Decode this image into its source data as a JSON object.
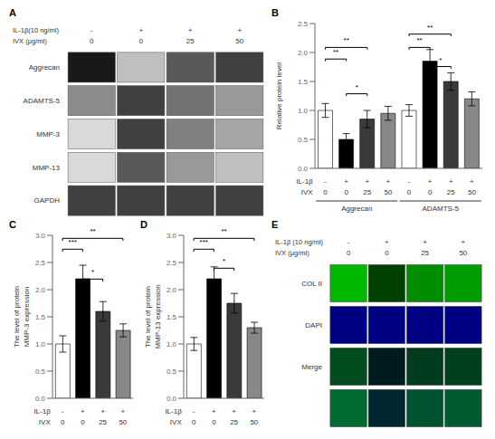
{
  "chart_data": [
    {
      "type": "heatmap",
      "title": "A",
      "categories": [
        "-\n0",
        "+\n0",
        "+\n25",
        "+\n50"
      ],
      "annotations": [
        "IL-1β(10 ng/ml)",
        "IVX  (μg/ml)"
      ],
      "rows": [
        "Aggrecan",
        "ADAMTS-5",
        "MMP-3",
        "MMP-13",
        "GAPDH"
      ],
      "cells": [
        [
          0.9,
          0.25,
          0.65,
          0.75
        ],
        [
          0.45,
          0.75,
          0.55,
          0.4
        ],
        [
          0.15,
          0.75,
          0.5,
          0.35
        ],
        [
          0.15,
          0.65,
          0.4,
          0.25
        ],
        [
          0.75,
          0.75,
          0.75,
          0.75
        ]
      ]
    },
    {
      "type": "bar",
      "title": "B",
      "ylabel": "Relative protein level",
      "categories": [
        "-\n0",
        "+\n0",
        "+\n25",
        "+\n50",
        "-\n0",
        "+\n0",
        "+\n25",
        "+\n50"
      ],
      "groups": [
        "Aggrecan",
        "ADAMTS-5"
      ],
      "annotations": [
        "IL-1β",
        "IVX"
      ],
      "values": [
        1.0,
        0.5,
        0.85,
        0.95,
        1.0,
        1.85,
        1.5,
        1.2
      ],
      "errors": [
        0.12,
        0.1,
        0.15,
        0.12,
        0.1,
        0.2,
        0.15,
        0.12
      ],
      "colors": [
        "white",
        "black",
        "#3a3a3a",
        "#888888",
        "white",
        "black",
        "#3a3a3a",
        "#888888"
      ],
      "ylim": [
        0.0,
        2.5
      ],
      "yticks": [
        {
          "value": 0,
          "label": "0.0"
        },
        0.5,
        {
          "value": 1,
          "label": "1.0"
        },
        1.5,
        {
          "value": 2,
          "label": "2.0"
        },
        2.5
      ],
      "significance": [
        {
          "x1": 0,
          "x2": 1,
          "y": 1.85,
          "label": "**"
        },
        {
          "x1": 0,
          "x2": 2,
          "y": 2.05,
          "label": "**"
        },
        {
          "x1": 1,
          "x2": 2,
          "y": 1.25,
          "label": "*"
        },
        {
          "x1": 4,
          "x2": 5,
          "y": 2.05,
          "label": "**"
        },
        {
          "x1": 4,
          "x2": 6,
          "y": 2.28,
          "label": "**"
        },
        {
          "x1": 5,
          "x2": 6,
          "y": 1.72,
          "label": "*"
        }
      ]
    },
    {
      "type": "bar",
      "title": "C",
      "ylabel": "The level of protein\nMMP-3 expression",
      "categories": [
        "-\n0",
        "+\n0",
        "+\n25",
        "+\n50"
      ],
      "annotations": [
        "IL-1β",
        "IVX"
      ],
      "values": [
        1.0,
        2.2,
        1.6,
        1.25
      ],
      "errors": [
        0.15,
        0.25,
        0.18,
        0.12
      ],
      "colors": [
        "white",
        "black",
        "#3a3a3a",
        "#888888"
      ],
      "ylim": [
        0.0,
        3.0
      ],
      "yticks": [
        {
          "value": 0,
          "label": "0.0"
        },
        0.5,
        {
          "value": 1,
          "label": "1.0"
        },
        1.5,
        {
          "value": 2,
          "label": "2.0"
        },
        2.5,
        {
          "value": 3,
          "label": "3.0"
        }
      ],
      "significance": [
        {
          "x1": 0,
          "x2": 1,
          "y": 2.7,
          "label": "***"
        },
        {
          "x1": 1,
          "x2": 2,
          "y": 2.15,
          "label": "*"
        },
        {
          "x1": 0,
          "x2": 3,
          "y": 2.9,
          "label": "**"
        }
      ]
    },
    {
      "type": "bar",
      "title": "D",
      "ylabel": "The level of protein\nMMP-13 expression",
      "categories": [
        "-\n0",
        "+\n0",
        "+\n25",
        "+\n50"
      ],
      "annotations": [
        "IL-1β",
        "IVX"
      ],
      "values": [
        1.0,
        2.2,
        1.75,
        1.3
      ],
      "errors": [
        0.12,
        0.22,
        0.18,
        0.1
      ],
      "colors": [
        "white",
        "black",
        "#3a3a3a",
        "#888888"
      ],
      "ylim": [
        0.0,
        3.0
      ],
      "yticks": [
        {
          "value": 0,
          "label": "0.0"
        },
        0.5,
        {
          "value": 1,
          "label": "1.0"
        },
        1.5,
        {
          "value": 2,
          "label": "2.0"
        },
        2.5,
        {
          "value": 3,
          "label": "3.0"
        }
      ],
      "significance": [
        {
          "x1": 0,
          "x2": 1,
          "y": 2.7,
          "label": "***"
        },
        {
          "x1": 1,
          "x2": 2,
          "y": 2.35,
          "label": "*"
        },
        {
          "x1": 0,
          "x2": 3,
          "y": 2.9,
          "label": "**"
        }
      ]
    },
    {
      "type": "heatmap",
      "title": "E",
      "categories": [
        "-\n0",
        "+\n0",
        "+\n25",
        "+\n50"
      ],
      "annotations": [
        "IL-1β (10 ng/ml)",
        "IVX  (μg/ml)"
      ],
      "rows": [
        "COL II",
        "DAPI",
        "Merge",
        null
      ],
      "green_intensity": [
        0.85,
        0.3,
        0.65,
        0.72
      ],
      "blue_intensity": [
        0.6,
        0.6,
        0.6,
        0.6
      ]
    }
  ]
}
